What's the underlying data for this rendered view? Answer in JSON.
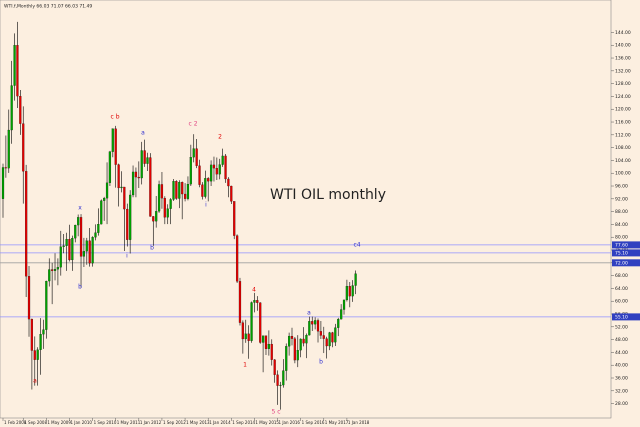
{
  "chart_data": {
    "type": "candlestick",
    "header": "WTI.f,Monthly 66.03 71.07 66.03 71.49",
    "title": "WTI OIL monthly",
    "up_color": "#00a000",
    "down_color": "#e00000",
    "wick_color": "#000000",
    "categories": [
      "1 Feb 2008",
      null,
      null,
      null,
      null,
      null,
      null,
      "1 Sep 2008",
      null,
      null,
      null,
      null,
      null,
      null,
      null,
      "1 May 2009",
      null,
      null,
      null,
      null,
      null,
      null,
      null,
      "1 Jan 2010",
      null,
      null,
      null,
      null,
      null,
      null,
      null,
      "1 Sep 2010",
      null,
      null,
      null,
      null,
      null,
      null,
      null,
      "1 May 2011",
      null,
      null,
      null,
      null,
      null,
      null,
      null,
      "1 Jan 2012",
      null,
      null,
      null,
      null,
      null,
      null,
      null,
      "1 Sep 2012",
      null,
      null,
      null,
      null,
      null,
      null,
      null,
      "1 May 2013",
      null,
      null,
      null,
      null,
      null,
      null,
      null,
      "1 Jan 2014",
      null,
      null,
      null,
      null,
      null,
      null,
      null,
      "1 Sep 2014",
      null,
      null,
      null,
      null,
      null,
      null,
      null,
      "1 May 2015",
      null,
      null,
      null,
      null,
      null,
      null,
      null,
      "1 Jan 2016",
      null,
      null,
      null,
      null,
      null,
      null,
      null,
      "1 Sep 2016",
      null,
      null,
      null,
      null,
      null,
      null,
      null,
      "1 May 2017",
      null,
      null,
      null,
      null,
      null,
      null,
      null,
      "1 Jan 2018",
      null,
      null,
      null
    ],
    "series": [
      {
        "name": "WTI",
        "open": [
          92.0,
          101.8,
          101.6,
          113.5,
          127.4,
          140.0,
          124.1,
          115.5,
          100.6,
          67.8,
          54.4,
          44.6,
          41.7,
          44.8,
          49.7,
          51.1,
          66.3,
          69.9,
          69.5,
          70.0,
          70.6,
          77.0,
          77.3,
          79.4,
          72.9,
          79.7,
          83.8,
          86.2,
          74.0,
          75.6,
          78.9,
          71.9,
          80.0,
          81.4,
          84.1,
          91.4,
          92.2,
          97.0,
          106.7,
          113.9,
          102.7,
          95.4,
          95.7,
          88.8,
          79.2,
          93.2,
          100.4,
          98.8,
          98.5,
          107.1,
          103.0,
          104.9,
          86.5,
          85.0,
          88.1,
          96.5,
          92.2,
          86.2,
          88.9,
          91.8,
          97.5,
          92.1,
          97.2,
          93.5,
          92.0,
          96.6,
          105.0,
          107.7,
          102.3,
          96.4,
          92.7,
          98.4,
          97.5,
          102.6,
          101.6,
          99.7,
          102.7,
          105.4,
          98.2,
          96.0,
          91.2,
          80.5,
          66.2,
          53.3,
          48.2,
          49.8,
          47.6,
          59.6,
          60.3,
          59.5,
          47.1,
          49.2,
          45.1,
          46.6,
          41.7,
          37.0,
          33.6,
          33.8,
          38.3,
          45.9,
          49.1,
          48.3,
          41.6,
          44.7,
          48.2,
          46.9,
          49.4,
          53.7,
          52.8,
          54.0,
          50.6,
          49.3,
          48.3,
          46.0,
          50.2,
          47.2,
          51.7,
          54.4,
          57.4,
          60.4,
          64.7,
          61.6,
          64.9
        ],
        "high": [
          103.0,
          111.8,
          119.9,
          135.1,
          143.7,
          147.3,
          126.0,
          120.9,
          102.6,
          71.0,
          54.6,
          49.0,
          45.6,
          54.7,
          54.2,
          66.4,
          73.4,
          72.0,
          75.0,
          73.4,
          82.0,
          81.0,
          81.4,
          83.9,
          80.5,
          83.9,
          87.1,
          87.2,
          79.8,
          79.8,
          82.9,
          80.3,
          84.0,
          89.0,
          91.8,
          92.6,
          103.4,
          107.0,
          114.0,
          114.8,
          103.0,
          100.6,
          95.7,
          90.5,
          94.7,
          102.4,
          101.8,
          103.7,
          109.8,
          110.5,
          106.4,
          106.3,
          86.6,
          92.9,
          97.7,
          100.4,
          92.8,
          90.3,
          92.2,
          98.2,
          97.8,
          97.8,
          97.4,
          96.9,
          99.0,
          108.9,
          112.2,
          110.7,
          104.2,
          97.2,
          100.8,
          98.8,
          104.0,
          105.2,
          104.9,
          104.5,
          107.7,
          106.0,
          98.8,
          96.1,
          91.2,
          80.9,
          67.3,
          54.0,
          54.2,
          52.5,
          59.9,
          62.6,
          61.6,
          59.7,
          49.3,
          49.3,
          50.9,
          48.1,
          41.9,
          38.4,
          34.8,
          41.9,
          46.8,
          50.2,
          51.7,
          48.8,
          49.4,
          48.4,
          51.9,
          49.9,
          55.2,
          55.2,
          55.0,
          54.6,
          53.8,
          52.0,
          48.9,
          50.4,
          50.4,
          52.9,
          54.8,
          59.1,
          60.5,
          66.7,
          66.0,
          66.6,
          69.6
        ],
        "low": [
          86.1,
          98.6,
          100.1,
          109.2,
          122.7,
          120.4,
          112.0,
          90.5,
          61.3,
          48.9,
          32.4,
          33.6,
          33.6,
          37.0,
          45.1,
          48.3,
          64.6,
          59.1,
          66.5,
          65.0,
          68.0,
          75.0,
          69.5,
          72.4,
          69.5,
          78.4,
          80.3,
          64.2,
          70.7,
          71.4,
          70.8,
          70.8,
          79.0,
          80.5,
          84.0,
          85.1,
          84.1,
          96.0,
          105.0,
          95.5,
          89.6,
          94.0,
          75.7,
          77.1,
          74.9,
          92.5,
          92.5,
          95.4,
          96.5,
          102.0,
          100.7,
          86.4,
          77.3,
          83.0,
          87.6,
          88.9,
          84.1,
          84.1,
          84.1,
          91.3,
          91.7,
          89.1,
          85.6,
          91.2,
          91.5,
          96.0,
          103.4,
          101.6,
          95.6,
          91.8,
          92.1,
          91.2,
          96.0,
          97.4,
          97.9,
          98.1,
          102.0,
          97.0,
          92.5,
          90.4,
          79.4,
          65.7,
          52.4,
          43.6,
          47.0,
          42.0,
          47.0,
          56.5,
          57.0,
          46.7,
          37.8,
          43.2,
          43.0,
          39.9,
          34.5,
          27.6,
          26.1,
          33.0,
          35.2,
          43.0,
          46.2,
          40.6,
          39.4,
          42.5,
          45.9,
          42.2,
          49.3,
          50.7,
          51.2,
          47.1,
          48.2,
          43.8,
          42.1,
          44.7,
          45.6,
          46.0,
          49.1,
          54.3,
          55.8,
          59.9,
          58.1,
          59.8,
          62.2
        ],
        "close": [
          101.8,
          101.6,
          113.5,
          127.4,
          140.0,
          124.1,
          115.5,
          100.6,
          67.8,
          54.4,
          44.6,
          41.7,
          44.8,
          49.7,
          51.1,
          66.3,
          69.9,
          69.5,
          70.0,
          70.6,
          77.0,
          77.3,
          79.4,
          72.9,
          79.7,
          83.8,
          86.2,
          74.0,
          75.6,
          78.9,
          71.9,
          80.0,
          81.4,
          84.1,
          91.4,
          92.2,
          97.0,
          106.7,
          113.9,
          102.7,
          95.4,
          95.7,
          88.8,
          79.2,
          93.2,
          100.4,
          98.8,
          98.5,
          107.1,
          103.0,
          104.9,
          86.5,
          85.0,
          88.1,
          96.5,
          92.2,
          86.2,
          88.9,
          91.8,
          97.5,
          92.1,
          97.2,
          93.5,
          92.0,
          96.6,
          105.0,
          107.7,
          102.3,
          96.4,
          92.7,
          98.4,
          97.5,
          102.6,
          101.6,
          99.7,
          102.7,
          105.4,
          98.2,
          96.0,
          91.2,
          80.5,
          66.2,
          53.3,
          48.2,
          49.8,
          47.6,
          59.6,
          60.3,
          59.5,
          47.1,
          49.2,
          45.1,
          46.6,
          41.7,
          37.0,
          33.6,
          33.8,
          38.3,
          45.9,
          49.1,
          48.3,
          41.6,
          44.7,
          48.2,
          46.9,
          49.4,
          53.7,
          52.8,
          54.0,
          50.6,
          49.3,
          48.3,
          46.0,
          50.2,
          47.2,
          51.7,
          54.4,
          57.4,
          60.4,
          64.7,
          61.6,
          64.9,
          68.6
        ]
      }
    ],
    "ylim": [
      23.5,
      153.2
    ],
    "yticks": [
      {
        "value": 28,
        "label": "28.00"
      },
      {
        "value": 32,
        "label": "32.00"
      },
      {
        "value": 36,
        "label": "36.00"
      },
      {
        "value": 40,
        "label": "40.00"
      },
      {
        "value": 44,
        "label": "44.00"
      },
      {
        "value": 48,
        "label": "48.00"
      },
      {
        "value": 52,
        "label": "52.00"
      },
      {
        "value": 56,
        "label": "56.00"
      },
      {
        "value": 60,
        "label": "60.00"
      },
      {
        "value": 64,
        "label": "64.00"
      },
      {
        "value": 68,
        "label": "68.00"
      },
      {
        "value": 72,
        "label": "72.00"
      },
      {
        "value": 76,
        "label": "76.00"
      },
      {
        "value": 80,
        "label": "80.00"
      },
      {
        "value": 84,
        "label": "84.00"
      },
      {
        "value": 88,
        "label": "88.00"
      },
      {
        "value": 92,
        "label": "92.00"
      },
      {
        "value": 96,
        "label": "96.00"
      },
      {
        "value": 100,
        "label": "100.00"
      },
      {
        "value": 104,
        "label": "104.00"
      },
      {
        "value": 108,
        "label": "108.00"
      },
      {
        "value": 112,
        "label": "112.00"
      },
      {
        "value": 116,
        "label": "116.00"
      },
      {
        "value": 120,
        "label": "120.00"
      },
      {
        "value": 124,
        "label": "124.00"
      },
      {
        "value": 128,
        "label": "128.00"
      },
      {
        "value": 132,
        "label": "132.00"
      },
      {
        "value": 136,
        "label": "136.00"
      },
      {
        "value": 140,
        "label": "140.00"
      },
      {
        "value": 144,
        "label": "144.00"
      }
    ],
    "hlines": [
      {
        "value": 77.6,
        "label": "77.60",
        "color": "#9090ff"
      },
      {
        "value": 75.1,
        "label": "75.10",
        "color": "#9090ff"
      },
      {
        "value": 72.0,
        "label": "72.00",
        "color": "#a0a0a0"
      },
      {
        "value": 55.1,
        "label": "55.10",
        "color": "#9090ff"
      }
    ],
    "annotations": [
      {
        "text": "a",
        "color": "#e00000"
      },
      {
        "text": "x",
        "color": "#3030d0"
      },
      {
        "text": "b",
        "color": "#3030d0"
      },
      {
        "text": "c b",
        "color": "#e00000"
      },
      {
        "text": "a",
        "color": "#3030d0"
      },
      {
        "text": "i",
        "color": "#3030d0"
      },
      {
        "text": "b",
        "color": "#3030d0"
      },
      {
        "text": "c 2",
        "color": "#e04080"
      },
      {
        "text": "2",
        "color": "#e00000"
      },
      {
        "text": "i",
        "color": "#3030d0"
      },
      {
        "text": "4",
        "color": "#e00000"
      },
      {
        "text": "1",
        "color": "#e00000"
      },
      {
        "text": "5 c",
        "color": "#e04080"
      },
      {
        "text": "a",
        "color": "#3030d0"
      },
      {
        "text": "b",
        "color": "#3030d0"
      },
      {
        "text": "c4",
        "color": "#3030d0"
      }
    ]
  }
}
